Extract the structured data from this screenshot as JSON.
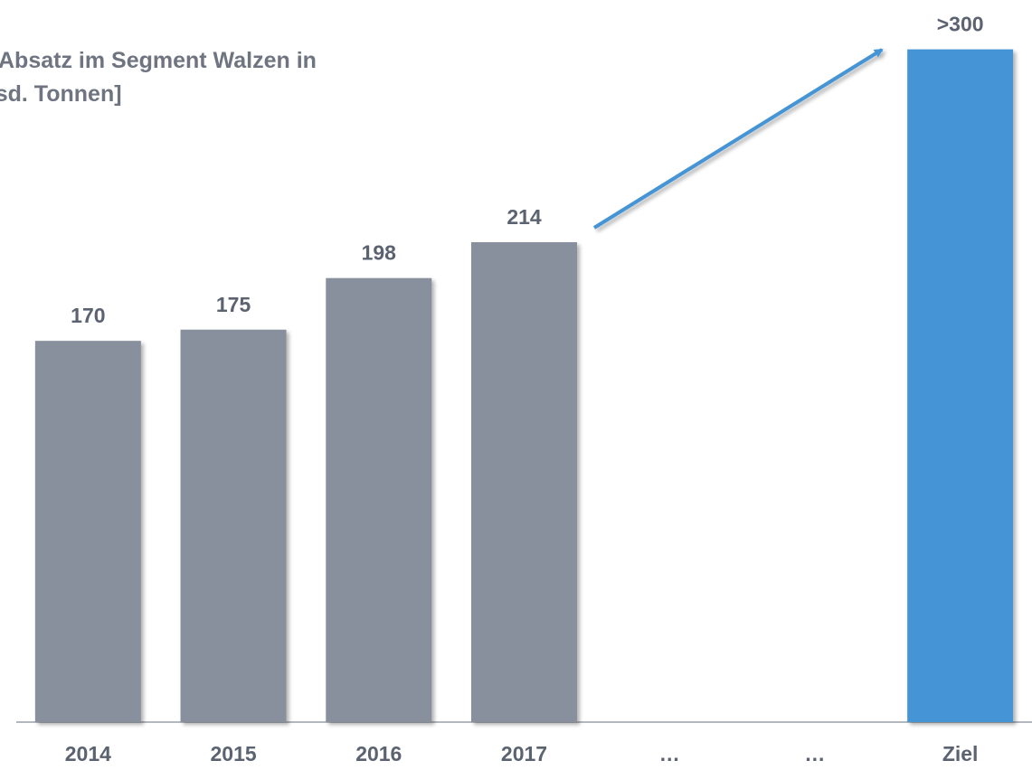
{
  "chart_data": {
    "type": "bar",
    "title": [
      "Absatz im Segment Walzen in",
      "[Tsd. Tonnen]"
    ],
    "categories": [
      "2014",
      "2015",
      "2016",
      "2017",
      "…",
      "…",
      "Ziel"
    ],
    "values": [
      170,
      175,
      198,
      214,
      null,
      null,
      300
    ],
    "value_labels": [
      "170",
      "175",
      "198",
      "214",
      null,
      null,
      ">300"
    ],
    "colors": [
      "#87909c",
      "#87909c",
      "#87909c",
      "#87909c",
      null,
      null,
      "#4595d6"
    ],
    "ylim": [
      0,
      322
    ]
  }
}
